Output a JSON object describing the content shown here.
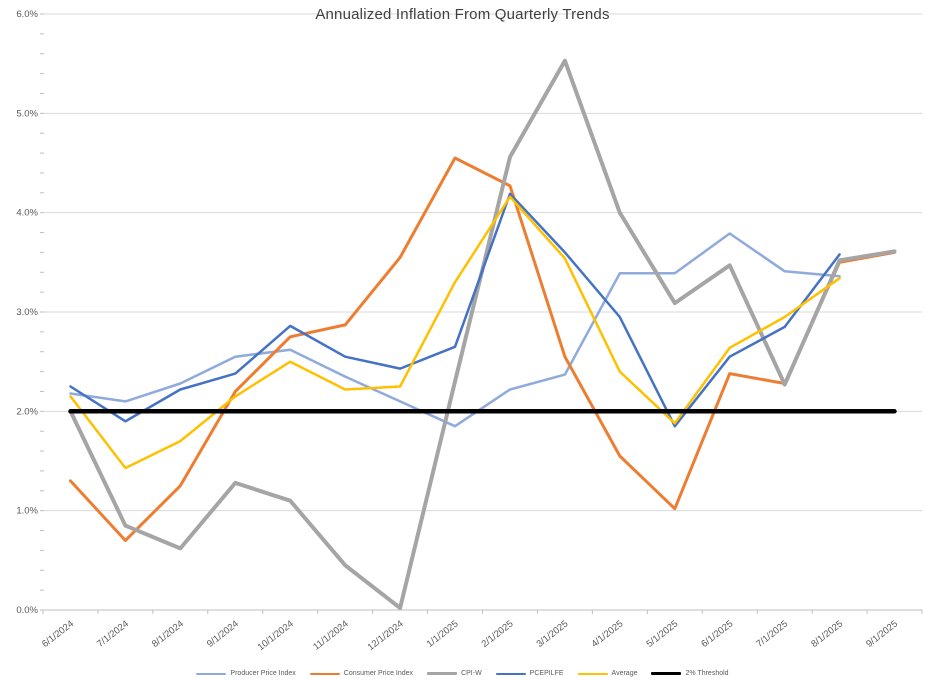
{
  "title": "Annualized Inflation From Quarterly Trends",
  "chart_data": {
    "type": "line",
    "x": [
      "6/1/2024",
      "7/1/2024",
      "8/1/2024",
      "9/1/2024",
      "10/1/2024",
      "11/1/2024",
      "12/1/2024",
      "1/1/2025",
      "2/1/2025",
      "3/1/2025",
      "4/1/2025",
      "5/1/2025",
      "6/1/2025",
      "7/1/2025",
      "8/1/2025",
      "9/1/2025"
    ],
    "series": [
      {
        "name": "Producer Price Index",
        "color": "#8FAADC",
        "width": 2.5,
        "values": [
          2.18,
          2.1,
          2.28,
          2.55,
          2.62,
          2.35,
          2.1,
          1.85,
          2.22,
          2.37,
          3.39,
          3.39,
          3.79,
          3.41,
          3.36,
          null
        ]
      },
      {
        "name": "Consumer Price Index",
        "color": "#ED7D31",
        "width": 3,
        "values": [
          1.3,
          0.7,
          1.25,
          2.2,
          2.75,
          2.87,
          3.55,
          4.55,
          4.27,
          2.55,
          1.55,
          1.02,
          2.38,
          2.28,
          3.5,
          3.6
        ]
      },
      {
        "name": "CPI-W",
        "color": "#A5A5A5",
        "width": 4,
        "values": [
          2.0,
          0.85,
          0.62,
          1.28,
          1.1,
          0.45,
          0.02,
          2.3,
          4.56,
          5.53,
          4.0,
          3.09,
          3.47,
          2.27,
          3.52,
          3.61
        ]
      },
      {
        "name": "PCEPILFE",
        "color": "#4472C4",
        "width": 2.5,
        "values": [
          2.25,
          1.9,
          2.22,
          2.38,
          2.86,
          2.55,
          2.43,
          2.65,
          4.19,
          3.6,
          2.95,
          1.85,
          2.55,
          2.85,
          3.58,
          null
        ]
      },
      {
        "name": "Average",
        "color": "#FFC000",
        "width": 2.5,
        "values": [
          2.15,
          1.43,
          1.7,
          2.15,
          2.5,
          2.22,
          2.25,
          3.3,
          4.16,
          3.54,
          2.4,
          1.88,
          2.64,
          2.95,
          3.34,
          null
        ]
      },
      {
        "name": "2% Threshold",
        "color": "#000000",
        "width": 4.5,
        "values": [
          2,
          2,
          2,
          2,
          2,
          2,
          2,
          2,
          2,
          2,
          2,
          2,
          2,
          2,
          2,
          2
        ]
      }
    ],
    "y_ticks": [
      "0.0%",
      "1.0%",
      "2.0%",
      "3.0%",
      "4.0%",
      "5.0%",
      "6.0%"
    ],
    "ylim": [
      0,
      6
    ],
    "y_major": 1.0,
    "y_minor": 0.2,
    "grid": "horizontal-major",
    "legend_position": "bottom",
    "axis_color": "#BFBFBF",
    "grid_color": "#D9D9D9",
    "tick_label_color": "#595959"
  }
}
